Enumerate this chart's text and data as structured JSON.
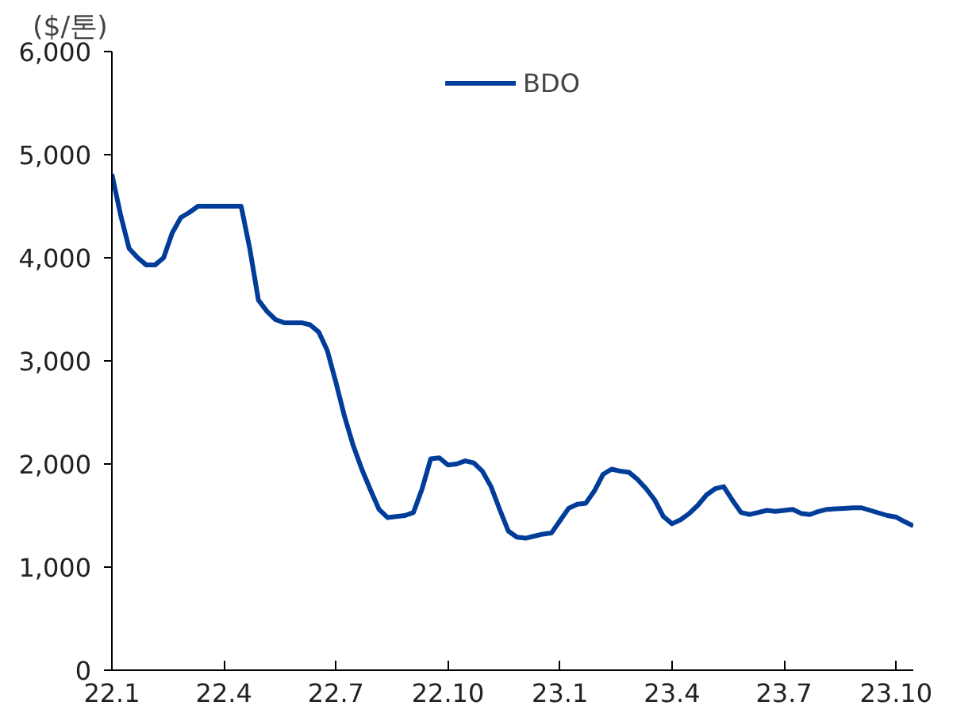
{
  "chart_data": {
    "type": "line",
    "ylabel": "($/톤)",
    "legend": "top",
    "grid": false,
    "marker": "none",
    "line_style": "solid",
    "categories": [
      "22.1",
      null,
      null,
      null,
      null,
      null,
      null,
      null,
      null,
      null,
      null,
      null,
      null,
      "22.4",
      null,
      null,
      null,
      null,
      null,
      null,
      null,
      null,
      null,
      null,
      null,
      null,
      "22.7",
      null,
      null,
      null,
      null,
      null,
      null,
      null,
      null,
      null,
      null,
      null,
      null,
      "22.10",
      null,
      null,
      null,
      null,
      null,
      null,
      null,
      null,
      null,
      null,
      null,
      null,
      "23.1",
      null,
      null,
      null,
      null,
      null,
      null,
      null,
      null,
      null,
      null,
      null,
      null,
      "23.4",
      null,
      null,
      null,
      null,
      null,
      null,
      null,
      null,
      null,
      null,
      null,
      null,
      "23.7",
      null,
      null,
      null,
      null,
      null,
      null,
      null,
      null,
      null,
      null,
      null,
      null,
      "23.10",
      null,
      null
    ],
    "ylim": [
      0,
      6000
    ],
    "yticks": [
      {
        "value": 0,
        "label": "0"
      },
      {
        "value": 1000,
        "label": "1,000"
      },
      {
        "value": 2000,
        "label": "2,000"
      },
      {
        "value": 3000,
        "label": "3,000"
      },
      {
        "value": 4000,
        "label": "4,000"
      },
      {
        "value": 5000,
        "label": "5,000"
      },
      {
        "value": 6000,
        "label": "6,000"
      }
    ],
    "series": [
      {
        "name": "BDO",
        "color": "#003d99",
        "values": [
          4810,
          4420,
          4090,
          4000,
          3930,
          3930,
          4000,
          4240,
          4390,
          4440,
          4500,
          4500,
          4500,
          4500,
          4500,
          4500,
          4090,
          3590,
          3480,
          3400,
          3370,
          3370,
          3370,
          3350,
          3280,
          3100,
          2790,
          2460,
          2180,
          1950,
          1750,
          1560,
          1480,
          1490,
          1500,
          1530,
          1760,
          2050,
          2060,
          1990,
          2000,
          2030,
          2010,
          1930,
          1780,
          1560,
          1350,
          1290,
          1280,
          1300,
          1320,
          1330,
          1450,
          1570,
          1610,
          1620,
          1740,
          1900,
          1950,
          1930,
          1920,
          1850,
          1760,
          1650,
          1490,
          1420,
          1460,
          1520,
          1600,
          1700,
          1760,
          1780,
          1650,
          1530,
          1510,
          1530,
          1550,
          1540,
          1550,
          1560,
          1520,
          1510,
          1540,
          1560,
          1565,
          1570,
          1575,
          1575,
          1550,
          1525,
          1500,
          1485,
          1440,
          1400
        ]
      }
    ]
  }
}
